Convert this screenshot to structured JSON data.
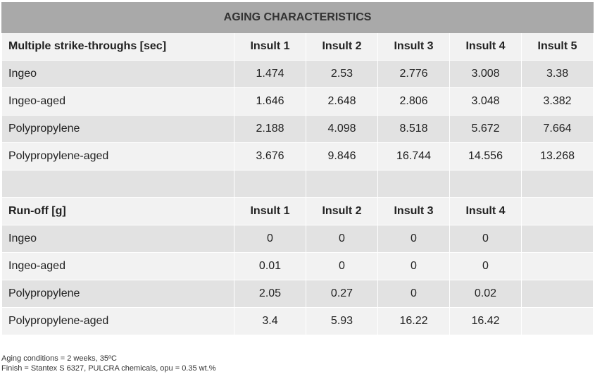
{
  "title": "AGING CHARACTERISTICS",
  "strike": {
    "header": [
      "Multiple strike-throughs [sec]",
      "Insult 1",
      "Insult 2",
      "Insult 3",
      "Insult 4",
      "Insult 5"
    ],
    "rows": [
      [
        "Ingeo",
        "1.474",
        "2.53",
        "2.776",
        "3.008",
        "3.38"
      ],
      [
        "Ingeo-aged",
        "1.646",
        "2.648",
        "2.806",
        "3.048",
        "3.382"
      ],
      [
        "Polypropylene",
        "2.188",
        "4.098",
        "8.518",
        "5.672",
        "7.664"
      ],
      [
        "Polypropylene-aged",
        "3.676",
        "9.846",
        "16.744",
        "14.556",
        "13.268"
      ]
    ]
  },
  "runoff": {
    "header": [
      "Run-off [g]",
      "Insult 1",
      "Insult 2",
      "Insult 3",
      "Insult 4",
      ""
    ],
    "rows": [
      [
        "Ingeo",
        "0",
        "0",
        "0",
        "0",
        ""
      ],
      [
        "Ingeo-aged",
        "0.01",
        "0",
        "0",
        "0",
        ""
      ],
      [
        "Polypropylene",
        "2.05",
        "0.27",
        "0",
        "0.02",
        ""
      ],
      [
        "Polypropylene-aged",
        "3.4",
        "5.93",
        "16.22",
        "16.42",
        ""
      ]
    ]
  },
  "notes": {
    "line1": "Aging conditions = 2 weeks, 35ºC",
    "line2": "Finish = Stantex S 6327, PULCRA chemicals, opu = 0.35 wt.%"
  }
}
